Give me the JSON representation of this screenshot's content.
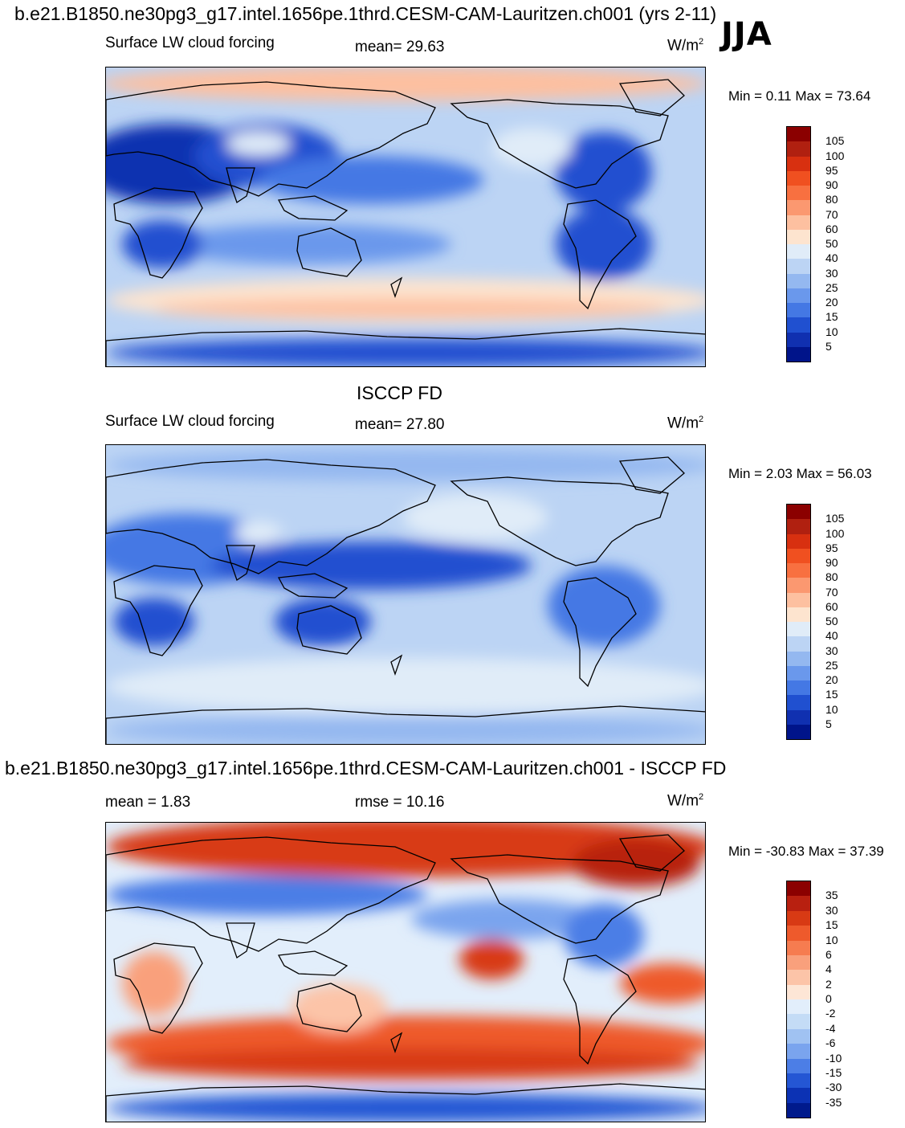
{
  "header": {
    "case_title": "b.e21.B1850.ne30pg3_g17.intel.1656pe.1thrd.CESM-CAM-Lauritzen.ch001 (yrs 2-11)",
    "season": "JJA"
  },
  "panels": [
    {
      "id": "model",
      "title": "",
      "left_label": "Surface LW cloud forcing",
      "center_label": "mean=  29.63",
      "units": "W/m",
      "units_sup": "2",
      "minmax": "Min =   0.11 Max =  73.64",
      "colorbar": {
        "labels": [
          "105",
          "100",
          "95",
          "90",
          "80",
          "70",
          "60",
          "50",
          "40",
          "30",
          "25",
          "20",
          "15",
          "10",
          "5"
        ],
        "colors": [
          "#8b0000",
          "#b02010",
          "#d83010",
          "#f05020",
          "#f87040",
          "#fb9870",
          "#fdc0a0",
          "#fde4cf",
          "#e0ecf8",
          "#bcd4f4",
          "#94b8f0",
          "#6a98ec",
          "#4478e4",
          "#2050d0",
          "#1030b0",
          "#00148a"
        ]
      },
      "chart_data": {
        "type": "heatmap",
        "description_field": "Surface LW cloud forcing, model JJA climatology",
        "mean": 29.63,
        "min": 0.11,
        "max": 73.64,
        "units": "W/m2",
        "contour_levels": [
          5,
          10,
          15,
          20,
          25,
          30,
          40,
          50,
          60,
          70,
          80,
          90,
          95,
          100,
          105
        ]
      }
    },
    {
      "id": "obs",
      "title": "ISCCP FD",
      "left_label": "Surface LW cloud forcing",
      "center_label": "mean=  27.80",
      "units": "W/m",
      "units_sup": "2",
      "minmax": "Min =   2.03 Max =  56.03",
      "colorbar": {
        "labels": [
          "105",
          "100",
          "95",
          "90",
          "80",
          "70",
          "60",
          "50",
          "40",
          "30",
          "25",
          "20",
          "15",
          "10",
          "5"
        ],
        "colors": [
          "#8b0000",
          "#b02010",
          "#d83010",
          "#f05020",
          "#f87040",
          "#fb9870",
          "#fdc0a0",
          "#fde4cf",
          "#e0ecf8",
          "#bcd4f4",
          "#94b8f0",
          "#6a98ec",
          "#4478e4",
          "#2050d0",
          "#1030b0",
          "#00148a"
        ]
      },
      "chart_data": {
        "type": "heatmap",
        "description_field": "Surface LW cloud forcing, ISCCP FD observations JJA",
        "mean": 27.8,
        "min": 2.03,
        "max": 56.03,
        "units": "W/m2",
        "contour_levels": [
          5,
          10,
          15,
          20,
          25,
          30,
          40,
          50,
          60,
          70,
          80,
          90,
          95,
          100,
          105
        ]
      }
    },
    {
      "id": "diff",
      "title": "b.e21.B1850.ne30pg3_g17.intel.1656pe.1thrd.CESM-CAM-Lauritzen.ch001 - ISCCP FD",
      "left_label": "mean =   1.83",
      "center_label": "rmse =  10.16",
      "units": "W/m",
      "units_sup": "2",
      "minmax": "Min = -30.83 Max =  37.39",
      "colorbar": {
        "labels": [
          "35",
          "30",
          "15",
          "10",
          "6",
          "4",
          "2",
          "0",
          "-2",
          "-4",
          "-6",
          "-10",
          "-15",
          "-30",
          "-35"
        ],
        "colors": [
          "#8b0000",
          "#b82010",
          "#d83a14",
          "#ee5a2c",
          "#f67c50",
          "#f9a07c",
          "#fcc4a8",
          "#fde6d6",
          "#e2eefb",
          "#c4dcf6",
          "#a0c2f2",
          "#7aa4ee",
          "#4c7ee6",
          "#2456d4",
          "#0c32b4",
          "#001a8c"
        ]
      },
      "chart_data": {
        "type": "heatmap",
        "description_field": "Model minus ISCCP FD surface LW cloud forcing difference",
        "mean": 1.83,
        "rmse": 10.16,
        "min": -30.83,
        "max": 37.39,
        "units": "W/m2",
        "contour_levels": [
          -35,
          -30,
          -15,
          -10,
          -6,
          -4,
          -2,
          0,
          2,
          4,
          6,
          10,
          15,
          30,
          35
        ]
      }
    }
  ]
}
